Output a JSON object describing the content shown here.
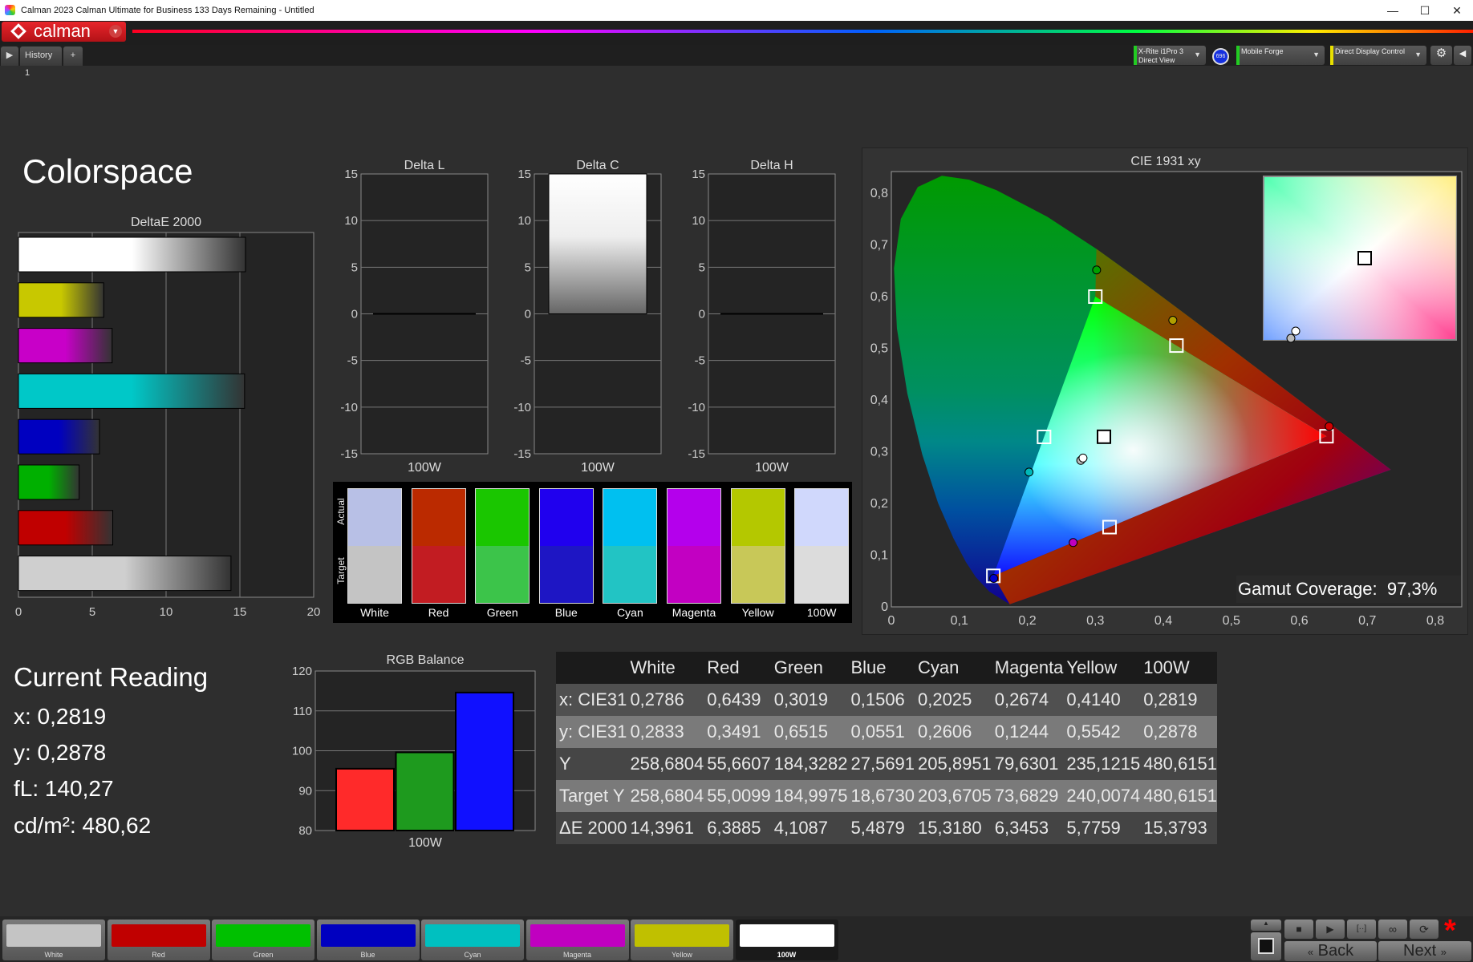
{
  "window": {
    "title": "Calman 2023 Calman Ultimate for Business 133 Days Remaining  - Untitled",
    "minimize": "—",
    "maximize": "☐",
    "close": "✕"
  },
  "app": {
    "logo": "calman",
    "tab": "History 1",
    "add_tab": "+"
  },
  "devices": {
    "meter_line1": "X-Rite i1Pro 3",
    "meter_line2": "Direct View",
    "meter_badge": "696",
    "source": "Mobile Forge",
    "display": "Direct Display Control",
    "meter_color": "#22cc22",
    "source_color": "#22cc22",
    "display_color": "#e8e000"
  },
  "page_title": "Colorspace",
  "chart_data": [
    {
      "type": "bar",
      "orientation": "horizontal",
      "title": "DeltaE 2000",
      "categories": [
        "100W",
        "Yellow",
        "Magenta",
        "Cyan",
        "Blue",
        "Green",
        "Red",
        "White"
      ],
      "values": [
        15.3793,
        5.7759,
        6.3453,
        15.318,
        5.4879,
        4.1087,
        6.3885,
        14.3961
      ],
      "colors": [
        "#ffffff",
        "#c8c800",
        "#c800c8",
        "#00c8c8",
        "#0000c0",
        "#00b000",
        "#c00000",
        "#cfcfcf"
      ],
      "xlim": [
        0,
        20
      ],
      "xticks": [
        "0",
        "5",
        "10",
        "15",
        "20"
      ],
      "grid": true
    },
    {
      "type": "bar",
      "title": "Delta L",
      "categories": [
        "100W"
      ],
      "values": [
        0
      ],
      "ylim": [
        -15,
        15
      ],
      "yticks": [
        "15",
        "10",
        "5",
        "0",
        "-5",
        "-10",
        "-15"
      ]
    },
    {
      "type": "bar",
      "title": "Delta C",
      "categories": [
        "100W"
      ],
      "values": [
        15
      ],
      "ylim": [
        -15,
        15
      ],
      "yticks": [
        "15",
        "10",
        "5",
        "0",
        "-5",
        "-10",
        "-15"
      ]
    },
    {
      "type": "bar",
      "title": "Delta H",
      "categories": [
        "100W"
      ],
      "values": [
        0
      ],
      "ylim": [
        -15,
        15
      ],
      "yticks": [
        "15",
        "10",
        "5",
        "0",
        "-5",
        "-10",
        "-15"
      ]
    },
    {
      "type": "scatter",
      "title": "CIE 1931 xy",
      "xlim": [
        0,
        0.8
      ],
      "ylim": [
        0,
        0.8
      ],
      "xticks": [
        "0",
        "0,1",
        "0,2",
        "0,3",
        "0,4",
        "0,5",
        "0,6",
        "0,7",
        "0,8"
      ],
      "yticks": [
        "0",
        "0,1",
        "0,2",
        "0,3",
        "0,4",
        "0,5",
        "0,6",
        "0,7",
        "0,8"
      ],
      "targets": [
        {
          "name": "Red",
          "x": 0.64,
          "y": 0.33
        },
        {
          "name": "Green",
          "x": 0.3,
          "y": 0.6
        },
        {
          "name": "Blue",
          "x": 0.15,
          "y": 0.06
        },
        {
          "name": "Cyan",
          "x": 0.2246,
          "y": 0.3287
        },
        {
          "name": "Magenta",
          "x": 0.3209,
          "y": 0.1542
        },
        {
          "name": "Yellow",
          "x": 0.4193,
          "y": 0.5053
        },
        {
          "name": "White",
          "x": 0.3127,
          "y": 0.329
        }
      ],
      "measured": [
        {
          "name": "White",
          "x": 0.2786,
          "y": 0.2833,
          "color": "#bbbbbb"
        },
        {
          "name": "Red",
          "x": 0.6439,
          "y": 0.3491,
          "color": "#d00000"
        },
        {
          "name": "Green",
          "x": 0.3019,
          "y": 0.6515,
          "color": "#00a000"
        },
        {
          "name": "Blue",
          "x": 0.1506,
          "y": 0.0551,
          "color": "#0000d0"
        },
        {
          "name": "Cyan",
          "x": 0.2025,
          "y": 0.2606,
          "color": "#00b8b8"
        },
        {
          "name": "Magenta",
          "x": 0.2674,
          "y": 0.1244,
          "color": "#c000c0"
        },
        {
          "name": "Yellow",
          "x": 0.414,
          "y": 0.5542,
          "color": "#b0a000"
        },
        {
          "name": "100W",
          "x": 0.2819,
          "y": 0.2878,
          "color": "#ffffff"
        }
      ],
      "gamut_label": "Gamut Coverage:",
      "gamut_value": "97,3%"
    },
    {
      "type": "bar",
      "title": "RGB Balance",
      "categories": [
        "100W"
      ],
      "series": [
        {
          "values": [
            95.5
          ],
          "color": "#ff2a2a"
        },
        {
          "values": [
            99.6
          ],
          "color": "#1e9a1e"
        },
        {
          "values": [
            114.6
          ],
          "color": "#1010ff"
        }
      ],
      "ylim": [
        80,
        120
      ],
      "yticks": [
        "120",
        "110",
        "100",
        "90",
        "80"
      ]
    }
  ],
  "swatches": {
    "actual_label": "Actual",
    "target_label": "Target",
    "items": [
      {
        "label": "White",
        "actual": "#b8c0e6",
        "target": "#c4c4c4"
      },
      {
        "label": "Red",
        "actual": "#bb2a00",
        "target": "#c21c22"
      },
      {
        "label": "Green",
        "actual": "#1ac600",
        "target": "#3cc44a"
      },
      {
        "label": "Blue",
        "actual": "#2000ee",
        "target": "#1e16c4"
      },
      {
        "label": "Cyan",
        "actual": "#00c0f0",
        "target": "#22c4c4"
      },
      {
        "label": "Magenta",
        "actual": "#b400ec",
        "target": "#c200c2"
      },
      {
        "label": "Yellow",
        "actual": "#b4c800",
        "target": "#c8c858"
      },
      {
        "label": "100W",
        "actual": "#d0d8fc",
        "target": "#dcdcdc"
      }
    ]
  },
  "current_reading": {
    "title": "Current Reading",
    "x": "x: 0,2819",
    "y": "y: 0,2878",
    "fl": "fL: 140,27",
    "cdm2": "cd/m²: 480,62"
  },
  "table": {
    "headers": [
      "",
      "White",
      "Red",
      "Green",
      "Blue",
      "Cyan",
      "Magenta",
      "Yellow",
      "100W"
    ],
    "rows": [
      [
        "x: CIE31",
        "0,2786",
        "0,6439",
        "0,3019",
        "0,1506",
        "0,2025",
        "0,2674",
        "0,4140",
        "0,2819"
      ],
      [
        "y: CIE31",
        "0,2833",
        "0,3491",
        "0,6515",
        "0,0551",
        "0,2606",
        "0,1244",
        "0,5542",
        "0,2878"
      ],
      [
        "Y",
        "258,6804",
        "55,6607",
        "184,3282",
        "27,5691",
        "205,8951",
        "79,6301",
        "235,1215",
        "480,6151"
      ],
      [
        "Target Y",
        "258,6804",
        "55,0099",
        "184,9975",
        "18,6730",
        "203,6705",
        "73,6829",
        "240,0074",
        "480,6151"
      ],
      [
        "ΔE 2000",
        "14,3961",
        "6,3885",
        "4,1087",
        "5,4879",
        "15,3180",
        "6,3453",
        "5,7759",
        "15,3793"
      ]
    ]
  },
  "patches": [
    {
      "label": "White",
      "color": "#c4c4c4"
    },
    {
      "label": "Red",
      "color": "#c00000"
    },
    {
      "label": "Green",
      "color": "#00c000"
    },
    {
      "label": "Blue",
      "color": "#0000c0"
    },
    {
      "label": "Cyan",
      "color": "#00c0c0"
    },
    {
      "label": "Magenta",
      "color": "#c000c0"
    },
    {
      "label": "Yellow",
      "color": "#c0c000"
    },
    {
      "label": "100W",
      "color": "#ffffff",
      "selected": true
    }
  ],
  "nav": {
    "back": "Back",
    "next": "Next"
  }
}
